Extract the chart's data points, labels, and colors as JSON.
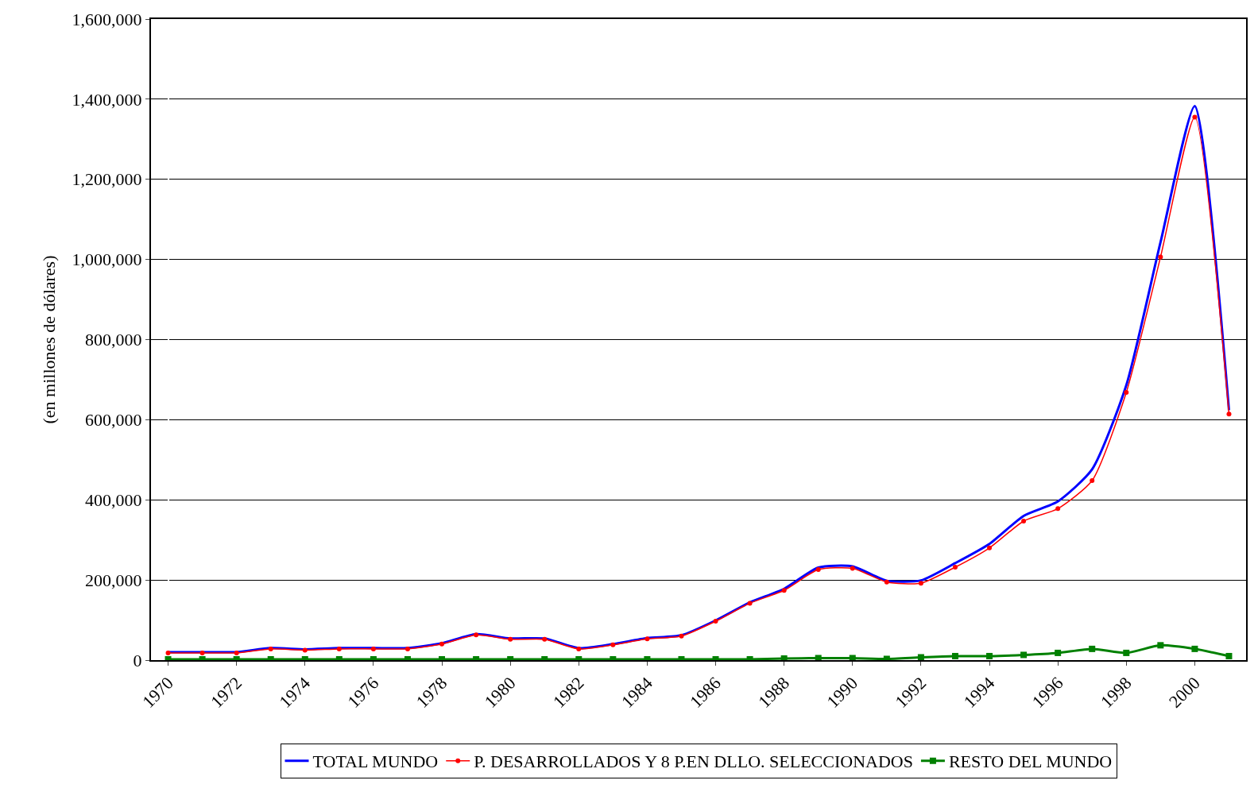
{
  "chart_data": {
    "type": "line",
    "ylabel": "(en millones de dólares)",
    "categories": [
      "1970",
      null,
      "1972",
      null,
      "1974",
      null,
      "1976",
      null,
      "1978",
      null,
      "1980",
      null,
      "1982",
      null,
      "1984",
      null,
      "1986",
      null,
      "1988",
      null,
      "1990",
      null,
      "1992",
      null,
      "1994",
      null,
      "1996",
      null,
      "1998",
      null,
      "2000",
      null
    ],
    "series": [
      {
        "name": "TOTAL MUNDO",
        "color": "#0000ff",
        "marker": "none",
        "values": [
          20000,
          20000,
          20000,
          30000,
          27000,
          30000,
          30000,
          30000,
          42000,
          65000,
          54000,
          54000,
          30000,
          40000,
          55000,
          62000,
          99000,
          144000,
          178000,
          231000,
          234000,
          198000,
          199000,
          242000,
          290000,
          360000,
          396000,
          476000,
          686000,
          1043000,
          1383000,
          624000
        ]
      },
      {
        "name": "P. DESARROLLADOS Y 8 P.EN DLLO. SELECCIONADOS",
        "color": "#ff0000",
        "marker": "circle",
        "values": [
          18000,
          18000,
          18000,
          28000,
          25000,
          28000,
          28000,
          28000,
          40000,
          63000,
          52000,
          52000,
          28000,
          38000,
          53000,
          60000,
          97000,
          142000,
          174000,
          226000,
          229000,
          195000,
          192000,
          232000,
          280000,
          347000,
          378000,
          448000,
          668000,
          1006000,
          1355000,
          614000
        ]
      },
      {
        "name": "RESTO DEL MUNDO",
        "color": "#008000",
        "marker": "square",
        "values": [
          2000,
          2000,
          2000,
          2000,
          2000,
          2000,
          2000,
          2000,
          2000,
          2000,
          2000,
          2000,
          2000,
          2000,
          2000,
          2000,
          2000,
          2000,
          4000,
          5000,
          5000,
          3000,
          7000,
          10000,
          10000,
          13000,
          18000,
          28000,
          18000,
          37000,
          28000,
          10000
        ]
      }
    ],
    "ylim": [
      0,
      1600000
    ],
    "yticks": [
      {
        "value": 0,
        "label": "0"
      },
      {
        "value": 200000,
        "label": "200,000"
      },
      {
        "value": 400000,
        "label": "400,000"
      },
      {
        "value": 600000,
        "label": "600,000"
      },
      {
        "value": 800000,
        "label": "800,000"
      },
      {
        "value": 1000000,
        "label": "1,000,000"
      },
      {
        "value": 1200000,
        "label": "1,200,000"
      },
      {
        "value": 1400000,
        "label": "1,400,000"
      },
      {
        "value": 1600000,
        "label": "1,600,000"
      }
    ],
    "grid": "y",
    "legend": "bottom"
  }
}
